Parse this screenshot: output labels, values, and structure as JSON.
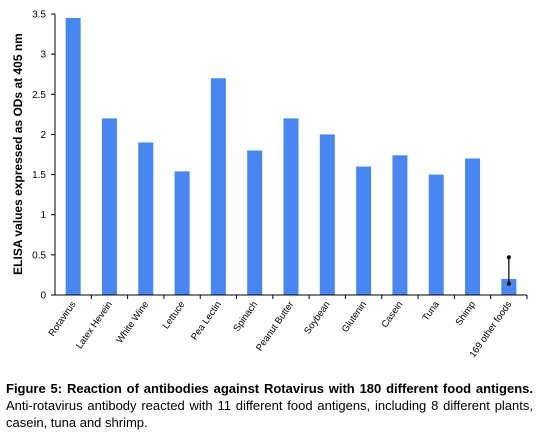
{
  "chart_data": {
    "type": "bar",
    "ylabel": "ELISA values expressed as ODs at 405 nm",
    "xlabel": "",
    "ylim": [
      0,
      3.5
    ],
    "yticks": [
      "0",
      "0.5",
      "1",
      "1.5",
      "2",
      "2.5",
      "3",
      "3.5"
    ],
    "grid": false,
    "bar_color": "#4a86f0",
    "categories": [
      "Rotavirus",
      "Latex Hevein",
      "White Wine",
      "Lettuce",
      "Pea Lectin",
      "Spinach",
      "Peanut Butter",
      "Soybean",
      "Glutenin",
      "Casein",
      "Tuna",
      "Shimp",
      "169 other foods"
    ],
    "values": [
      3.45,
      2.2,
      1.9,
      1.54,
      2.7,
      1.8,
      2.2,
      2.0,
      1.6,
      1.74,
      1.5,
      1.7,
      0.2
    ],
    "error_bars": [
      {
        "category": "169 other foods",
        "low": 0.14,
        "high": 0.47
      }
    ]
  },
  "caption": {
    "lead": "Figure 5: Reaction of antibodies against Rotavirus with 180 different food antigens.",
    "text": " Anti-rotavirus antibody reacted with 11 different food antigens, including 8 different plants, casein, tuna and shrimp."
  }
}
